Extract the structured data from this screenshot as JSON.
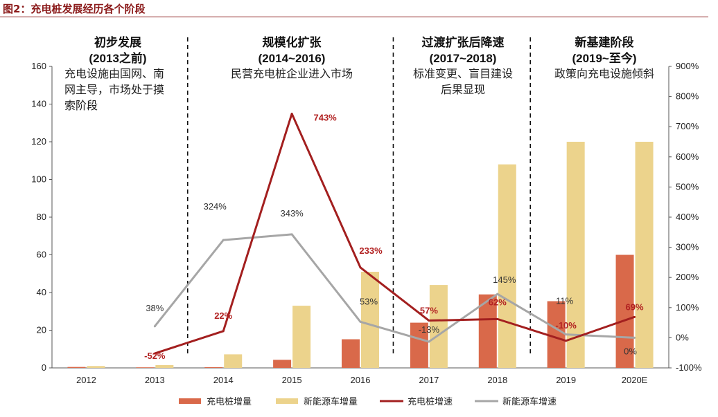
{
  "figure_title": "图2：充电桩发展经历各个阶段",
  "chart_data": {
    "type": "bar",
    "title": "图2：充电桩发展经历各个阶段",
    "categories": [
      "2012",
      "2013",
      "2014",
      "2015",
      "2016",
      "2017",
      "2018",
      "2019",
      "2020E"
    ],
    "ylim": [
      0,
      160
    ],
    "y2lim": [
      -100,
      900
    ],
    "yticks": [
      "0",
      "20",
      "40",
      "60",
      "80",
      "100",
      "120",
      "140",
      "160"
    ],
    "y2ticks": [
      "-100%",
      "0%",
      "100%",
      "200%",
      "300%",
      "400%",
      "500%",
      "600%",
      "700%",
      "800%",
      "900%"
    ],
    "series": [
      {
        "name": "充电桩增量",
        "kind": "bar",
        "axis": "left",
        "color": "#d9694a",
        "values": [
          0.5,
          0.3,
          0.4,
          4.3,
          15.2,
          24,
          39,
          35.4,
          60
        ]
      },
      {
        "name": "新能源车增量",
        "kind": "bar",
        "axis": "left",
        "color": "#ecd38c",
        "values": [
          1.0,
          1.5,
          7.2,
          33,
          51,
          44,
          108,
          120,
          120
        ]
      },
      {
        "name": "充电桩增速",
        "kind": "line",
        "axis": "right",
        "color": "#a31f1f",
        "values": [
          null,
          -52,
          22,
          743,
          233,
          57,
          62,
          -10,
          69
        ],
        "labels": [
          "",
          "-52%",
          "22%",
          "743%",
          "233%",
          "57%",
          "62%",
          "-10%",
          "69%"
        ]
      },
      {
        "name": "新能源车增速",
        "kind": "line",
        "axis": "right",
        "color": "#a6a6a6",
        "values": [
          null,
          38,
          324,
          343,
          53,
          -13,
          145,
          11,
          0
        ],
        "labels": [
          "",
          "38%",
          "324%",
          "343%",
          "53%",
          "-13%",
          "145%",
          "11%",
          "0%"
        ]
      }
    ],
    "phases": [
      {
        "title": "初步发展",
        "period": "(2013之前)",
        "desc": [
          "充电设施由国网、南",
          "网主导，市场处于摸",
          "索阶段"
        ]
      },
      {
        "title": "规模化扩张",
        "period": "(2014~2016)",
        "desc": [
          "民营充电桩企业进入市场"
        ]
      },
      {
        "title": "过渡扩张后降速",
        "period": "(2017~2018)",
        "desc": [
          "标准变更、盲目建设",
          "后果显现"
        ]
      },
      {
        "title": "新基建阶段",
        "period": "(2019~至今)",
        "desc": [
          "政策向充电设施倾斜"
        ]
      }
    ],
    "legend": [
      "充电桩增量",
      "新能源车增量",
      "充电桩增速",
      "新能源车增速"
    ]
  }
}
